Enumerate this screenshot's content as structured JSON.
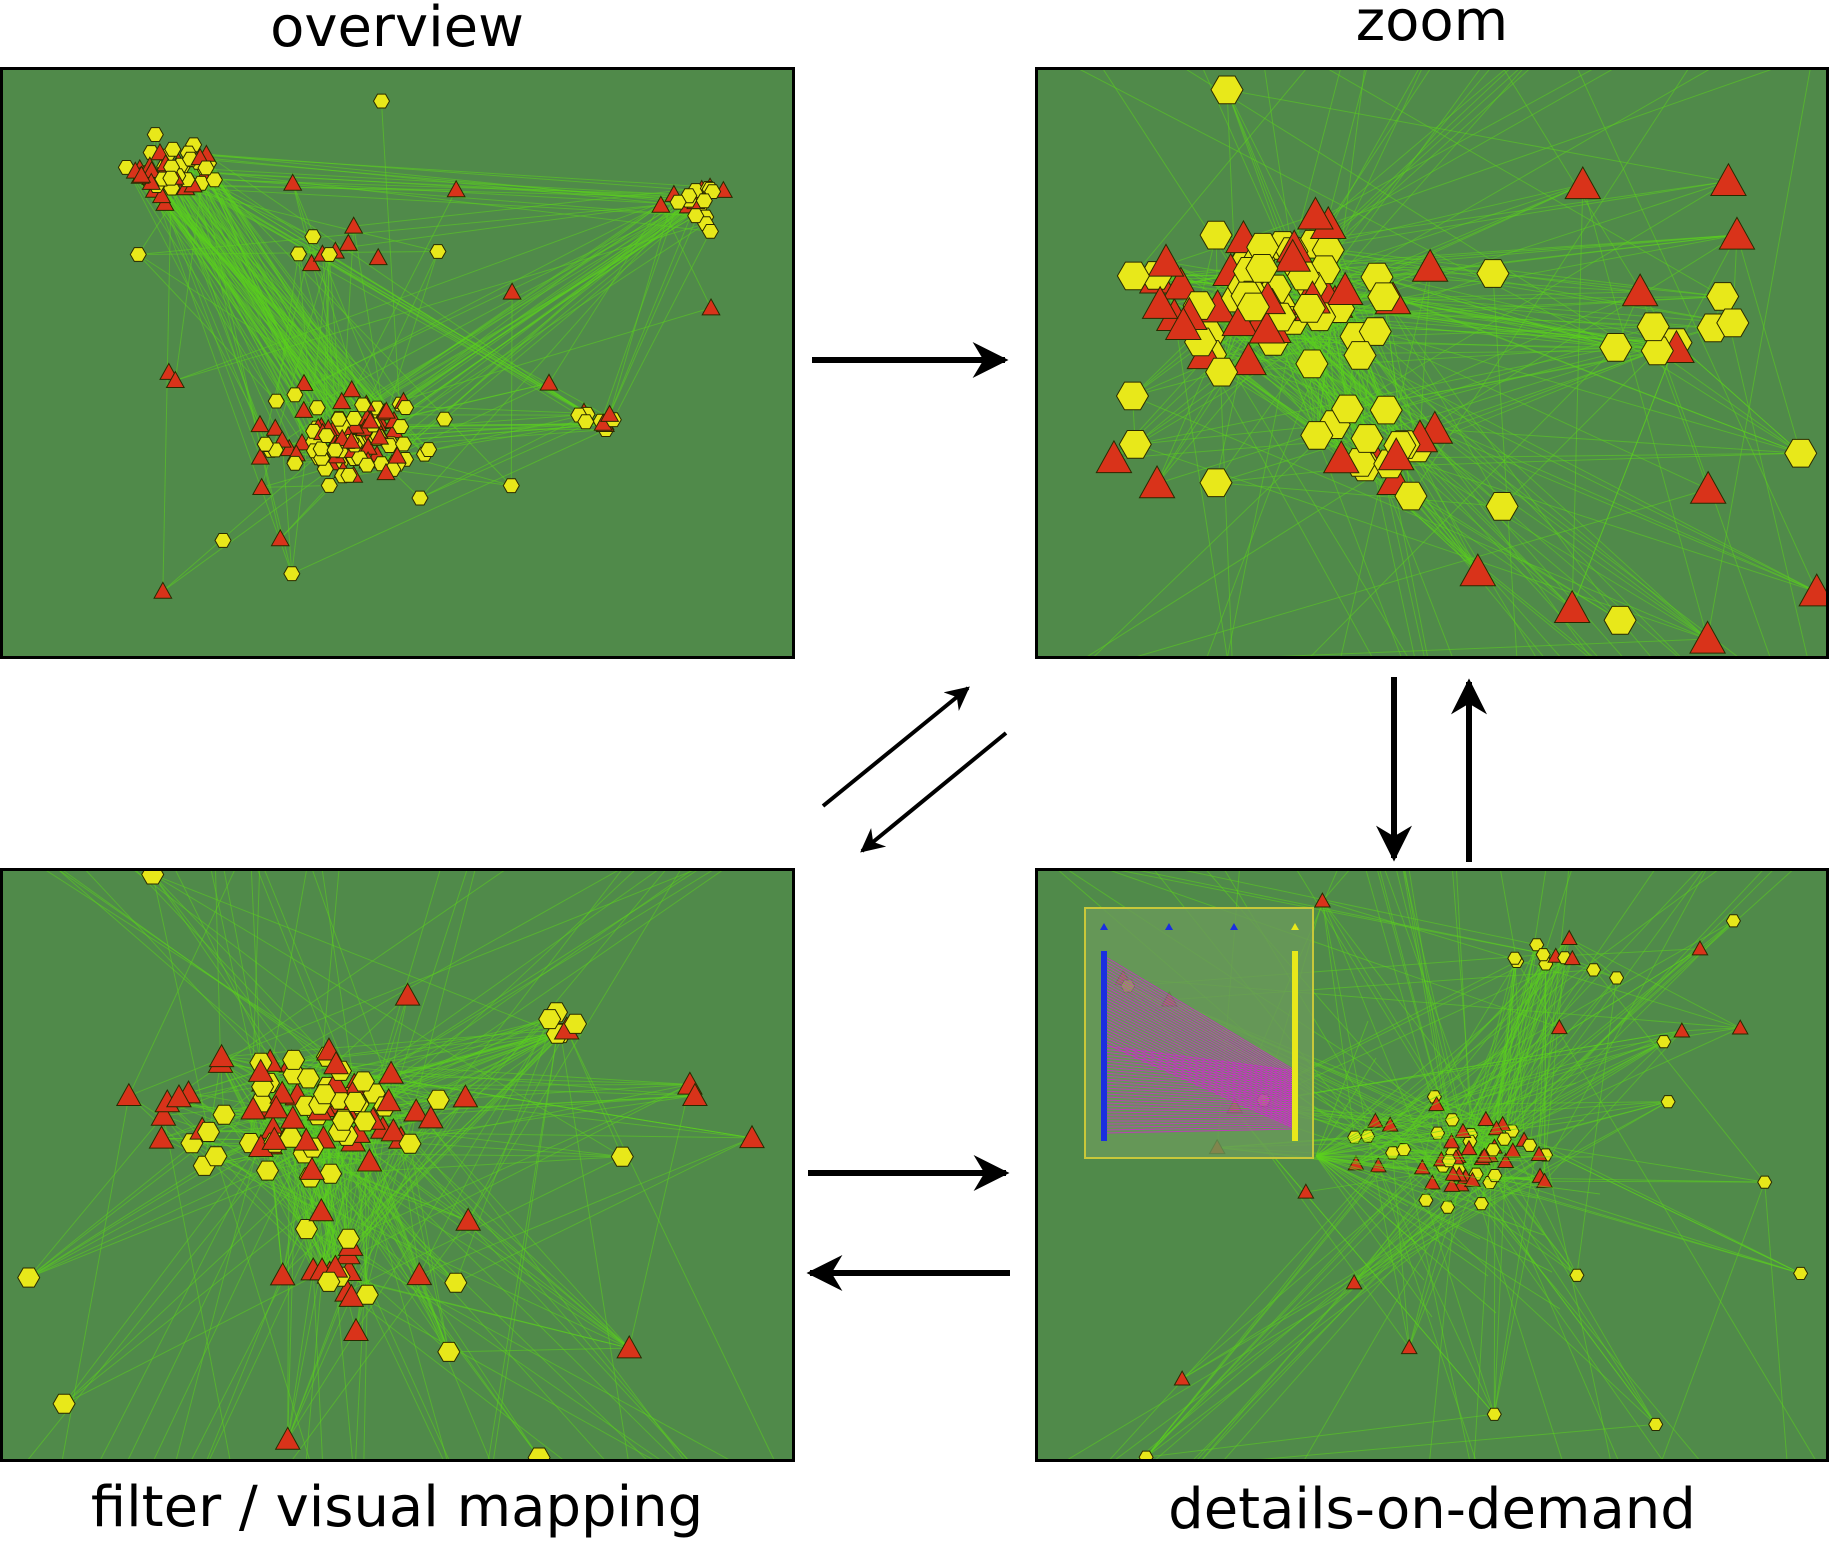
{
  "labels": {
    "overview": "overview",
    "zoom": "zoom",
    "filter": "filter / visual mapping",
    "details": "details-on-demand"
  },
  "colors": {
    "background": "#508a4a",
    "edge": "#5bd21d",
    "node_hexagon": "#e8e81a",
    "node_triangle": "#d9331a",
    "highlight_edge": "#e01ae0",
    "detail_axis": "#1a2ee0",
    "detail_box": "#c8c83a"
  },
  "node_shapes": [
    "yellow-hexagon",
    "red-triangle"
  ],
  "flow": [
    {
      "from": "overview",
      "to": "zoom"
    },
    {
      "from": "zoom",
      "to": "filter"
    },
    {
      "from": "filter",
      "to": "zoom"
    },
    {
      "from": "zoom",
      "to": "details"
    },
    {
      "from": "details",
      "to": "zoom"
    },
    {
      "from": "filter",
      "to": "details"
    },
    {
      "from": "details",
      "to": "filter"
    }
  ]
}
